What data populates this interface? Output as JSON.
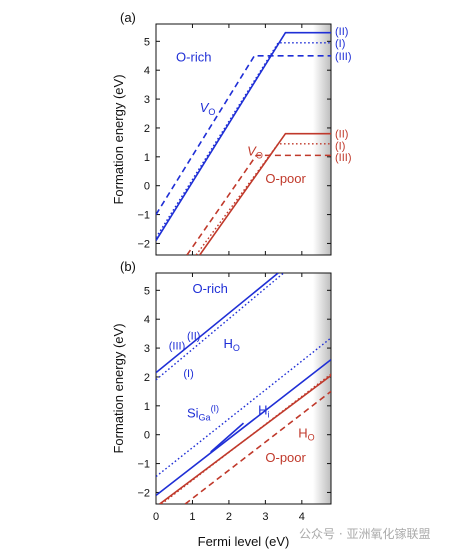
{
  "colors": {
    "blue": "#1f2fd6",
    "red": "#c0392b",
    "axis": "#111111"
  },
  "watermark": "公众号 · 亚洲氧化镓联盟",
  "chart_data": [
    {
      "type": "line",
      "panel_label": "(a)",
      "xlabel": "",
      "ylabel": "Formation energy (eV)",
      "xlim": [
        0,
        4.8
      ],
      "ylim": [
        -2.4,
        5.6
      ],
      "xticks": [
        "0",
        "1",
        "2",
        "3",
        "4"
      ],
      "yticks": [
        "-2",
        "-1",
        "0",
        "1",
        "2",
        "3",
        "4",
        "5"
      ],
      "annotations": [
        {
          "text": "O-rich",
          "color": "blue",
          "x": 0.55,
          "y": 4.3
        },
        {
          "text": "V",
          "sub": "O",
          "color": "blue",
          "x": 1.2,
          "y": 2.55
        },
        {
          "text": "V",
          "sub": "O",
          "color": "red",
          "x": 2.5,
          "y": 1.05
        },
        {
          "text": "O-poor",
          "color": "red",
          "x": 3.0,
          "y": 0.1
        }
      ],
      "right_labels": [
        {
          "text": "(II)",
          "color": "blue",
          "y": 5.35
        },
        {
          "text": "(I)",
          "color": "blue",
          "y": 4.95
        },
        {
          "text": "(III)",
          "color": "blue",
          "y": 4.5
        },
        {
          "text": "(II)",
          "color": "red",
          "y": 1.8
        },
        {
          "text": "(I)",
          "color": "red",
          "y": 1.4
        },
        {
          "text": "(III)",
          "color": "red",
          "y": 1.0
        }
      ],
      "series": [
        {
          "color": "blue",
          "dash": "solid",
          "x": [
            0,
            3.55,
            4.8
          ],
          "y": [
            -1.9,
            5.3,
            5.3
          ]
        },
        {
          "color": "blue",
          "dash": "dot",
          "x": [
            0,
            3.35,
            4.8
          ],
          "y": [
            -1.8,
            4.95,
            4.95
          ]
        },
        {
          "color": "blue",
          "dash": "dash",
          "x": [
            0,
            2.7,
            4.8
          ],
          "y": [
            -1.0,
            4.5,
            4.5
          ]
        },
        {
          "color": "red",
          "dash": "solid",
          "x": [
            1.2,
            3.55,
            4.8
          ],
          "y": [
            -2.4,
            1.8,
            1.8
          ]
        },
        {
          "color": "red",
          "dash": "dot",
          "x": [
            1.1,
            3.35,
            4.8
          ],
          "y": [
            -2.4,
            1.45,
            1.45
          ]
        },
        {
          "color": "red",
          "dash": "dash",
          "x": [
            0.85,
            2.75,
            4.8
          ],
          "y": [
            -2.4,
            1.05,
            1.05
          ]
        }
      ]
    },
    {
      "type": "line",
      "panel_label": "(b)",
      "xlabel": "Fermi level (eV)",
      "ylabel": "Formation energy (eV)",
      "xlim": [
        0,
        4.8
      ],
      "ylim": [
        -2.4,
        5.6
      ],
      "xticks": [
        "0",
        "1",
        "2",
        "3",
        "4"
      ],
      "yticks": [
        "-2",
        "-1",
        "0",
        "1",
        "2",
        "3",
        "4",
        "5"
      ],
      "annotations": [
        {
          "text": "O-rich",
          "color": "blue",
          "x": 1.0,
          "y": 4.9
        },
        {
          "text": "(II)",
          "color": "blue",
          "x": 0.85,
          "y": 3.3
        },
        {
          "text": "(III)",
          "color": "blue",
          "x": 0.35,
          "y": 2.95
        },
        {
          "text": "H",
          "sub": "O",
          "color": "blue",
          "x": 1.85,
          "y": 3.0
        },
        {
          "text": "(I)",
          "color": "blue",
          "x": 0.75,
          "y": 2.0
        },
        {
          "text": "Si",
          "sub": "Ga",
          "sup": "(I)",
          "color": "blue",
          "x": 0.85,
          "y": 0.6
        },
        {
          "text": "H",
          "sub": "i",
          "color": "blue",
          "x": 2.8,
          "y": 0.7
        },
        {
          "text": "H",
          "sub": "O",
          "color": "red",
          "x": 3.9,
          "y": -0.1
        },
        {
          "text": "O-poor",
          "color": "red",
          "x": 3.0,
          "y": -0.95
        }
      ],
      "series": [
        {
          "color": "blue",
          "dash": "solid",
          "x": [
            0,
            3.35
          ],
          "y": [
            2.15,
            5.6
          ]
        },
        {
          "color": "blue",
          "dash": "dot",
          "x": [
            0,
            3.5
          ],
          "y": [
            1.9,
            5.6
          ]
        },
        {
          "color": "blue",
          "dash": "dot",
          "x": [
            0,
            4.8
          ],
          "y": [
            -1.45,
            3.35
          ]
        },
        {
          "color": "blue",
          "dash": "solid",
          "x": [
            0,
            4.8
          ],
          "y": [
            -2.1,
            2.6
          ]
        },
        {
          "color": "blue",
          "dash": "solid",
          "x": [
            1.5,
            2.4
          ],
          "y": [
            -0.6,
            0.4
          ]
        },
        {
          "color": "red",
          "dash": "dot",
          "x": [
            0.15,
            4.8
          ],
          "y": [
            -2.4,
            2.1
          ]
        },
        {
          "color": "red",
          "dash": "solid",
          "x": [
            0.1,
            4.8
          ],
          "y": [
            -2.4,
            2.05
          ]
        },
        {
          "color": "red",
          "dash": "dash",
          "x": [
            0.8,
            4.8
          ],
          "y": [
            -2.4,
            1.5
          ]
        }
      ]
    }
  ]
}
